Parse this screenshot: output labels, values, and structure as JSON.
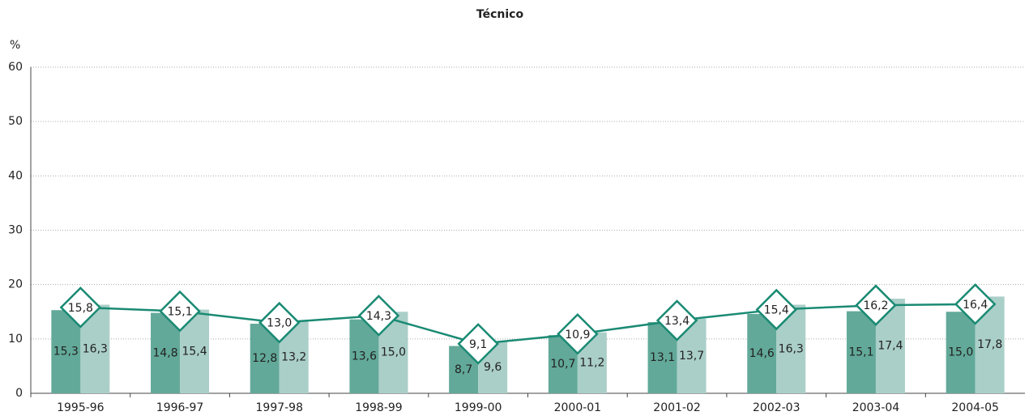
{
  "chart_data": {
    "type": "bar-line",
    "title": "Técnico",
    "y_label": "%",
    "categories": [
      "1995-96",
      "1996-97",
      "1997-98",
      "1998-99",
      "1999-00",
      "2000-01",
      "2001-02",
      "2002-03",
      "2003-04",
      "2004-05"
    ],
    "series": [
      {
        "type": "bar",
        "color": "#62a999",
        "values": [
          15.3,
          14.8,
          12.8,
          13.6,
          8.7,
          10.7,
          13.1,
          14.6,
          15.1,
          15.0
        ],
        "value_labels": [
          "15,3",
          "14,8",
          "12,8",
          "13,6",
          "8,7",
          "10,7",
          "13,1",
          "14,6",
          "15,1",
          "15,0"
        ]
      },
      {
        "type": "bar",
        "color": "#aacfc8",
        "values": [
          16.3,
          15.4,
          13.2,
          15.0,
          9.6,
          11.2,
          13.7,
          16.3,
          17.4,
          17.8
        ],
        "value_labels": [
          "16,3",
          "15,4",
          "13,2",
          "15,0",
          "9,6",
          "11,2",
          "13,7",
          "16,3",
          "17,4",
          "17,8"
        ]
      },
      {
        "type": "line",
        "color": "#1a8a73",
        "values": [
          15.8,
          15.1,
          13.0,
          14.3,
          9.1,
          10.9,
          13.4,
          15.4,
          16.2,
          16.4
        ],
        "value_labels": [
          "15,8",
          "15,1",
          "13,0",
          "14,3",
          "9,1",
          "10,9",
          "13,4",
          "15,4",
          "16,2",
          "16,4"
        ]
      }
    ],
    "ylim": [
      0,
      60
    ],
    "yticks": [
      0,
      10,
      20,
      30,
      40,
      50,
      60
    ],
    "grid": true
  }
}
